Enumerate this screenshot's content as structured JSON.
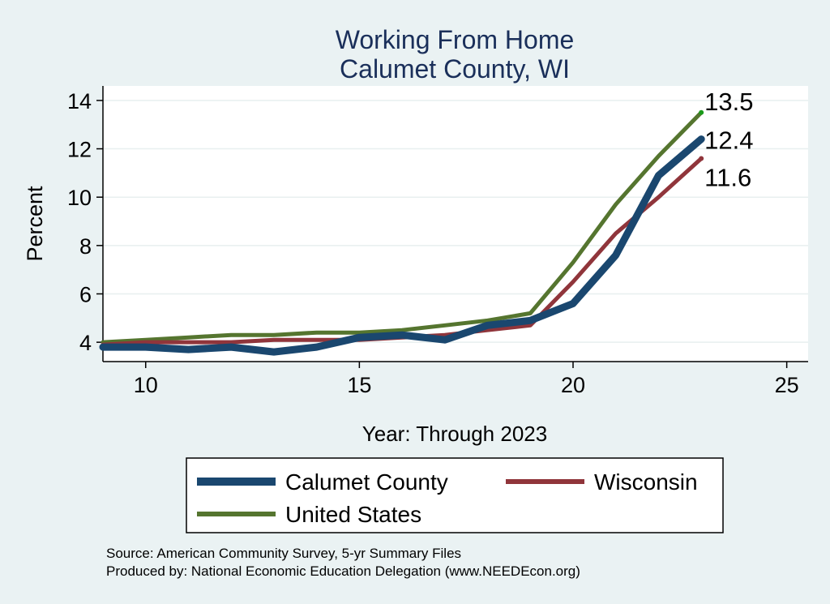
{
  "chart_data": {
    "type": "line",
    "title": "Working From Home",
    "subtitle": "Calumet County, WI",
    "xlabel": "Year: Through 2023",
    "ylabel": "Percent",
    "xlim": [
      9,
      25.5
    ],
    "ylim": [
      3.2,
      14.6
    ],
    "xticks": [
      10,
      15,
      20,
      25
    ],
    "yticks": [
      4,
      6,
      8,
      10,
      12,
      14
    ],
    "grid": true,
    "legend_position": "bottom",
    "x": [
      9,
      10,
      11,
      12,
      13,
      14,
      15,
      16,
      17,
      18,
      19,
      20,
      21,
      22,
      23
    ],
    "series": [
      {
        "name": "Calumet County",
        "color": "#1a476f",
        "values": [
          3.8,
          3.8,
          3.7,
          3.8,
          3.6,
          3.8,
          4.2,
          4.3,
          4.1,
          4.7,
          4.9,
          5.6,
          7.6,
          10.9,
          12.4
        ],
        "end_label": "12.4"
      },
      {
        "name": "Wisconsin",
        "color": "#90353b",
        "values": [
          3.9,
          4.0,
          4.0,
          4.0,
          4.1,
          4.1,
          4.1,
          4.2,
          4.3,
          4.5,
          4.7,
          6.5,
          8.5,
          10.0,
          11.6
        ],
        "end_label": "11.6"
      },
      {
        "name": "United States",
        "color": "#55752f",
        "values": [
          4.0,
          4.1,
          4.2,
          4.3,
          4.3,
          4.4,
          4.4,
          4.5,
          4.7,
          4.9,
          5.2,
          7.3,
          9.7,
          11.7,
          13.5
        ],
        "end_label": "13.5"
      }
    ]
  },
  "footer": {
    "source": "Source: American Community Survey, 5-yr Summary Files",
    "produced": "Produced by: National Economic Education Delegation (www.NEEDEcon.org)"
  }
}
